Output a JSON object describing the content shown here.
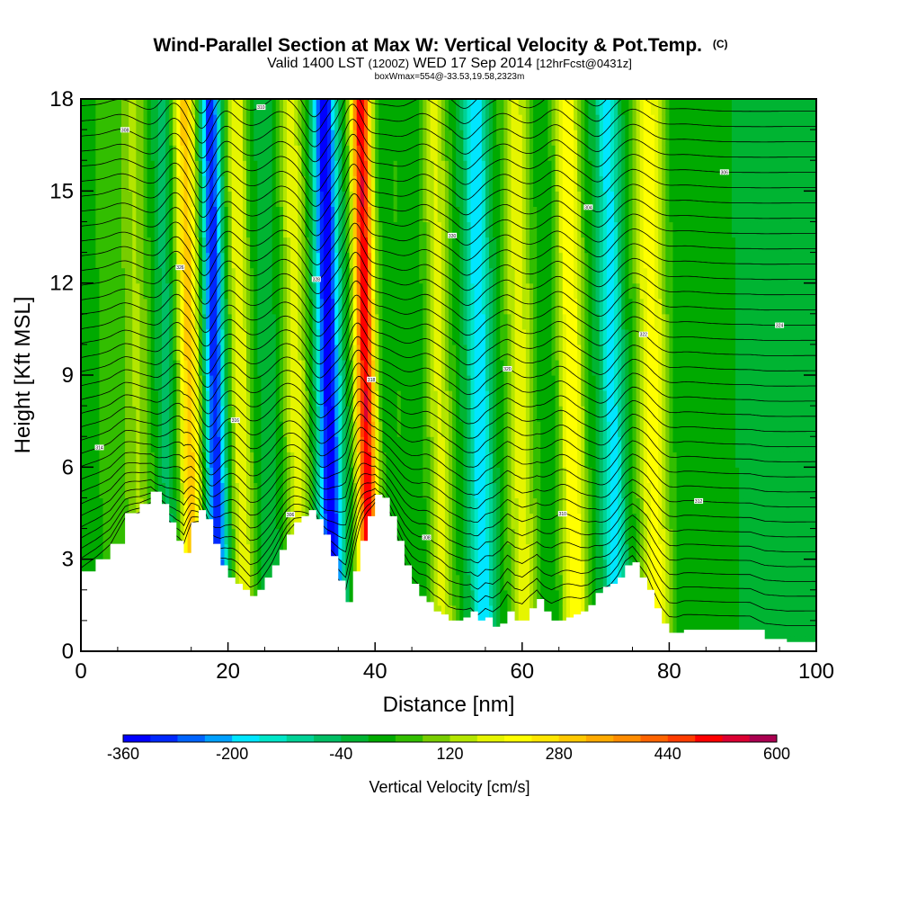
{
  "chart_data": {
    "type": "heatmap",
    "title": "Wind-Parallel Section at Max W: Vertical Velocity & Pot.Temp.",
    "title_mark": "(C)",
    "subtitle_parts": [
      "Valid 1400 LST",
      "(1200Z)",
      "WED 17 Sep 2014",
      "[12hrFcst@0431z]"
    ],
    "subtitle2": "boxWmax=554@-33.53,19.58,2323m",
    "xlabel": "Distance [nm]",
    "ylabel": "Height [Kft MSL]",
    "xlim": [
      0,
      100
    ],
    "ylim": [
      0,
      18
    ],
    "x_ticks": [
      0,
      20,
      40,
      60,
      80,
      100
    ],
    "x_tick_labels": [
      "0",
      "20",
      "40",
      "60",
      "80",
      "100"
    ],
    "y_ticks": [
      0,
      3,
      6,
      9,
      12,
      15,
      18
    ],
    "y_tick_labels": [
      "0",
      "3",
      "6",
      "9",
      "12",
      "15",
      "18"
    ],
    "colorbar": {
      "label": "Vertical Velocity [cm/s]",
      "min": -360,
      "max": 600,
      "step": 40,
      "tick_values": [
        -360,
        -200,
        -40,
        120,
        280,
        440,
        600
      ],
      "tick_labels": [
        "-360",
        "-200",
        "-40",
        "120",
        "280",
        "440",
        "600"
      ],
      "colors": [
        "#0000ff",
        "#0028ff",
        "#0064ff",
        "#00a0ff",
        "#00e6ff",
        "#00e6c8",
        "#00d296",
        "#00be64",
        "#00b432",
        "#00aa00",
        "#32be00",
        "#78cd00",
        "#b4e600",
        "#e6f500",
        "#ffff00",
        "#ffe600",
        "#ffc800",
        "#ffaa00",
        "#ff8c00",
        "#ff6400",
        "#ff3c00",
        "#ff0000",
        "#dc0032",
        "#aa0050"
      ]
    },
    "wave_bands": [
      {
        "x": 3,
        "amp": 50,
        "width": 2.5
      },
      {
        "x": 7,
        "amp": 120,
        "width": 2.0
      },
      {
        "x": 11,
        "amp": -60,
        "width": 1.5
      },
      {
        "x": 14,
        "amp": 300,
        "width": 1.6
      },
      {
        "x": 17.5,
        "amp": -320,
        "width": 1.3
      },
      {
        "x": 21,
        "amp": 200,
        "width": 1.5
      },
      {
        "x": 25,
        "amp": -20,
        "width": 1.8
      },
      {
        "x": 28.5,
        "amp": 180,
        "width": 1.8
      },
      {
        "x": 33,
        "amp": -360,
        "width": 1.5
      },
      {
        "x": 38,
        "amp": 520,
        "width": 1.4
      },
      {
        "x": 42.5,
        "amp": 40,
        "width": 2.0
      },
      {
        "x": 48,
        "amp": 170,
        "width": 1.8
      },
      {
        "x": 53.5,
        "amp": -200,
        "width": 1.5
      },
      {
        "x": 59,
        "amp": 180,
        "width": 2.0
      },
      {
        "x": 66,
        "amp": 240,
        "width": 1.8
      },
      {
        "x": 71.5,
        "amp": -180,
        "width": 1.5
      },
      {
        "x": 77,
        "amp": 220,
        "width": 2.2
      },
      {
        "x": 84,
        "amp": 30,
        "width": 2.5
      },
      {
        "x": 94,
        "amp": -10,
        "width": 4.0
      }
    ],
    "terrain": [
      [
        0,
        2.6
      ],
      [
        2,
        3.0
      ],
      [
        4,
        3.5
      ],
      [
        6,
        4.5
      ],
      [
        8,
        4.8
      ],
      [
        9.5,
        5.2
      ],
      [
        11,
        4.8
      ],
      [
        12,
        4.2
      ],
      [
        13,
        3.6
      ],
      [
        14,
        3.2
      ],
      [
        15,
        4.2
      ],
      [
        16,
        4.6
      ],
      [
        17,
        4.3
      ],
      [
        18,
        3.5
      ],
      [
        19,
        2.8
      ],
      [
        20,
        2.4
      ],
      [
        21,
        2.2
      ],
      [
        22,
        2.0
      ],
      [
        23,
        1.8
      ],
      [
        24,
        2.0
      ],
      [
        25,
        2.4
      ],
      [
        26,
        2.8
      ],
      [
        27,
        3.3
      ],
      [
        28,
        3.8
      ],
      [
        29,
        4.2
      ],
      [
        30,
        4.4
      ],
      [
        31,
        4.6
      ],
      [
        32,
        4.3
      ],
      [
        33,
        3.8
      ],
      [
        34,
        3.1
      ],
      [
        35,
        2.3
      ],
      [
        36,
        1.6
      ],
      [
        37,
        2.6
      ],
      [
        38,
        3.6
      ],
      [
        39,
        4.4
      ],
      [
        40,
        5.1
      ],
      [
        41,
        5.0
      ],
      [
        42,
        4.4
      ],
      [
        43,
        3.6
      ],
      [
        44,
        2.8
      ],
      [
        45,
        2.2
      ],
      [
        46,
        1.8
      ],
      [
        47,
        1.6
      ],
      [
        48,
        1.3
      ],
      [
        49,
        1.2
      ],
      [
        50,
        1.0
      ],
      [
        51,
        1.0
      ],
      [
        52,
        1.1
      ],
      [
        53,
        1.3
      ],
      [
        54,
        1.0
      ],
      [
        55,
        1.1
      ],
      [
        56,
        0.8
      ],
      [
        57,
        0.9
      ],
      [
        58,
        1.3
      ],
      [
        59,
        1.0
      ],
      [
        60,
        1.0
      ],
      [
        61,
        1.4
      ],
      [
        62,
        1.7
      ],
      [
        63,
        1.3
      ],
      [
        64,
        1.0
      ],
      [
        65,
        1.0
      ],
      [
        66,
        1.1
      ],
      [
        67,
        1.2
      ],
      [
        68,
        1.3
      ],
      [
        69,
        1.5
      ],
      [
        70,
        1.9
      ],
      [
        71,
        2.1
      ],
      [
        72,
        2.2
      ],
      [
        73,
        2.4
      ],
      [
        74,
        2.8
      ],
      [
        75,
        2.9
      ],
      [
        76,
        2.4
      ],
      [
        77,
        2.0
      ],
      [
        78,
        1.4
      ],
      [
        79,
        0.9
      ],
      [
        80,
        0.6
      ],
      [
        81,
        0.6
      ],
      [
        82,
        0.7
      ],
      [
        85,
        0.7
      ],
      [
        88,
        0.7
      ],
      [
        91,
        0.7
      ],
      [
        93,
        0.4
      ],
      [
        96,
        0.3
      ],
      [
        100,
        0.3
      ]
    ],
    "contour_labels": [
      "304",
      "306",
      "308",
      "310",
      "312",
      "314",
      "316",
      "318",
      "320",
      "322",
      "324",
      "326",
      "328",
      "330"
    ]
  }
}
